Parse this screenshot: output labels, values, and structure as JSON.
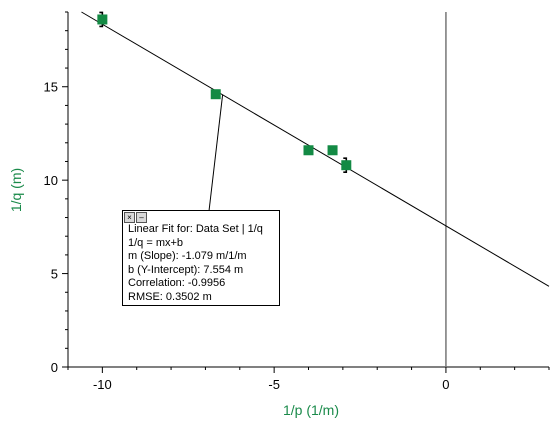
{
  "chart_data": {
    "type": "scatter",
    "xlabel": "1/p (1/m)",
    "ylabel": "1/q (m)",
    "xlim": [
      -11,
      3
    ],
    "ylim": [
      0,
      19
    ],
    "x_ticks": [
      -10,
      -5,
      0
    ],
    "y_ticks": [
      0,
      5,
      10,
      15
    ],
    "grid": false,
    "points": [
      {
        "x": -10.0,
        "y": 18.6,
        "error_bar": true
      },
      {
        "x": -6.7,
        "y": 14.6
      },
      {
        "x": -4.0,
        "y": 11.6
      },
      {
        "x": -3.3,
        "y": 11.6
      },
      {
        "x": -2.9,
        "y": 10.8,
        "error_bar": true
      }
    ],
    "point_color": "#138a44",
    "fit_line": {
      "slope": -1.079,
      "intercept": 7.554,
      "color": "#000000"
    },
    "annotation": {
      "lines": [
        "Linear Fit for: Data Set | 1/q",
        "1/q = mx+b",
        "m (Slope): -1.079 m/1/m",
        "b (Y-Intercept): 7.554 m",
        "Correlation: -0.9956",
        "RMSE: 0.3502 m"
      ],
      "close_icon": "close-icon",
      "minimize_icon": "minimize-icon"
    }
  }
}
